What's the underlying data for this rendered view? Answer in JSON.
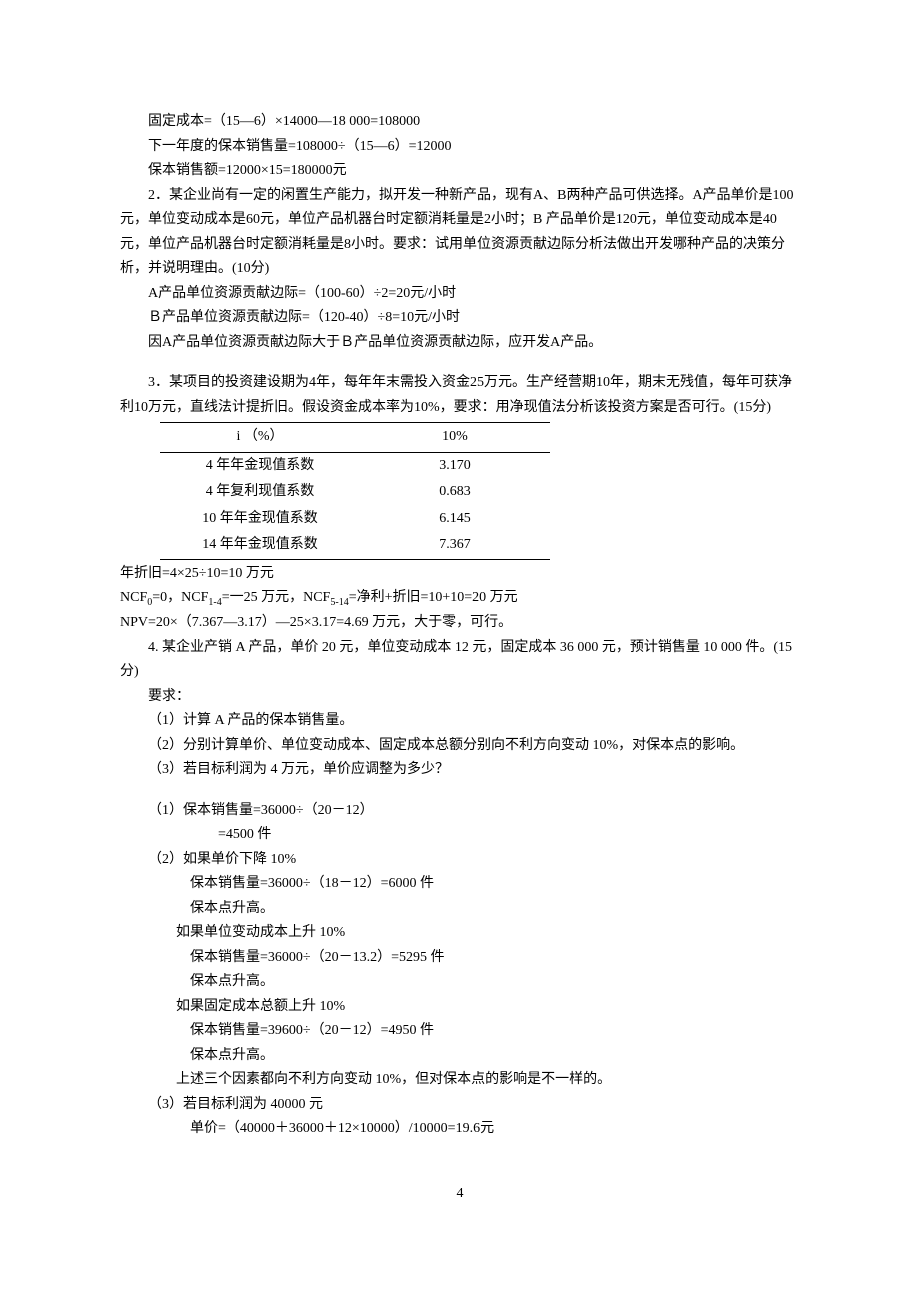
{
  "section1": {
    "line1": "固定成本=（15—6）×14000—18 000=108000",
    "line2": "下一年度的保本销售量=108000÷（15—6）=12000",
    "line3": "保本销售额=12000×15=180000元"
  },
  "section2": {
    "p1": "2．某企业尚有一定的闲置生产能力，拟开发一种新产品，现有A、B两种产品可供选择。A产品单价是100元，单位变动成本是60元，单位产品机器台时定额消耗量是2小时；B 产品单价是120元，单位变动成本是40元，单位产品机器台时定额消耗量是8小时。要求：试用单位资源贡献边际分析法做出开发哪种产品的决策分析，并说明理由。(10分)",
    "line1": "A产品单位资源贡献边际=（100-60）÷2=20元/小时",
    "line2": "Ｂ产品单位资源贡献边际=（120-40）÷8=10元/小时",
    "line3": "因A产品单位资源贡献边际大于Ｂ产品单位资源贡献边际，应开发A产品。"
  },
  "section3": {
    "p1": "3．某项目的投资建设期为4年，每年年末需投入资金25万元。生产经营期10年，期末无残值，每年可获净利10万元，直线法计提折旧。假设资金成本率为10%，要求：用净现值法分析该投资方案是否可行。(15分)",
    "table": {
      "header": [
        "i （%）",
        "10%"
      ],
      "rows": [
        [
          "4 年年金现值系数",
          "3.170"
        ],
        [
          "4 年复利现值系数",
          "0.683"
        ],
        [
          "10 年年金现值系数",
          "6.145"
        ],
        [
          "14 年年金现值系数",
          "7.367"
        ]
      ]
    },
    "line1": "年折旧=4×25÷10=10 万元",
    "line2_prefix": "NCF",
    "line2_sub0": "0",
    "line2_mid1": "=0，NCF",
    "line2_sub1": "1-4",
    "line2_mid2": "=一25 万元，NCF",
    "line2_sub2": "5-14",
    "line2_end": "=净利+折旧=10+10=20 万元",
    "line3": "NPV=20×（7.367—3.17）—25×3.17=4.69 万元，大于零，可行。"
  },
  "section4": {
    "p1": "4. 某企业产销 A 产品，单价 20 元，单位变动成本 12 元，固定成本 36 000 元，预计销售量 10 000 件。(15 分)",
    "req": "要求：",
    "req1": "（1）计算 A 产品的保本销售量。",
    "req2": "（2）分别计算单价、单位变动成本、固定成本总额分别向不利方向变动 10%，对保本点的影响。",
    "req3": "（3）若目标利润为 4 万元，单价应调整为多少？",
    "a1l1": "（1）保本销售量=36000÷（20－12）",
    "a1l2": "=4500 件",
    "a2l1": "（2）如果单价下降 10%",
    "a2l2": "保本销售量=36000÷（18－12）=6000 件",
    "a2l3": "保本点升高。",
    "a2l4": "如果单位变动成本上升 10%",
    "a2l5": "保本销售量=36000÷（20－13.2）=5295 件",
    "a2l6": "保本点升高。",
    "a2l7": "如果固定成本总额上升 10%",
    "a2l8": "保本销售量=39600÷（20－12）=4950 件",
    "a2l9": "保本点升高。",
    "a2l10": "上述三个因素都向不利方向变动 10%，但对保本点的影响是不一样的。",
    "a3l1": "（3）若目标利润为 40000 元",
    "a3l2": "单价=（40000＋36000＋12×10000）/10000=19.6元"
  },
  "pageNum": "4"
}
